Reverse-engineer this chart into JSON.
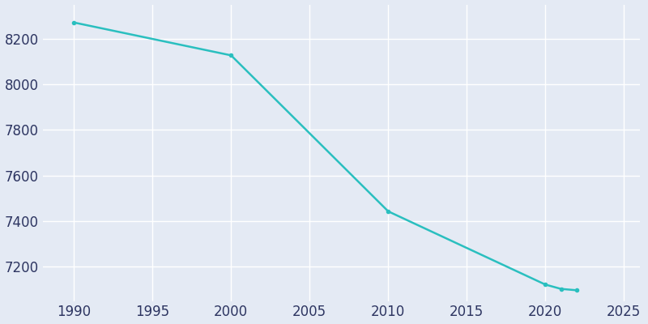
{
  "years": [
    1990,
    2000,
    2010,
    2020,
    2021,
    2022
  ],
  "population": [
    8271,
    8127,
    7443,
    7122,
    7103,
    7097
  ],
  "line_color": "#2abfbf",
  "marker": "o",
  "marker_size": 3,
  "line_width": 1.8,
  "background_color": "#e4eaf4",
  "grid_color": "#ffffff",
  "xlim": [
    1988,
    2026
  ],
  "ylim": [
    7050,
    8350
  ],
  "xticks": [
    1990,
    1995,
    2000,
    2005,
    2010,
    2015,
    2020,
    2025
  ],
  "yticks": [
    7200,
    7400,
    7600,
    7800,
    8000,
    8200
  ],
  "tick_color": "#2d3561",
  "tick_fontsize": 12
}
